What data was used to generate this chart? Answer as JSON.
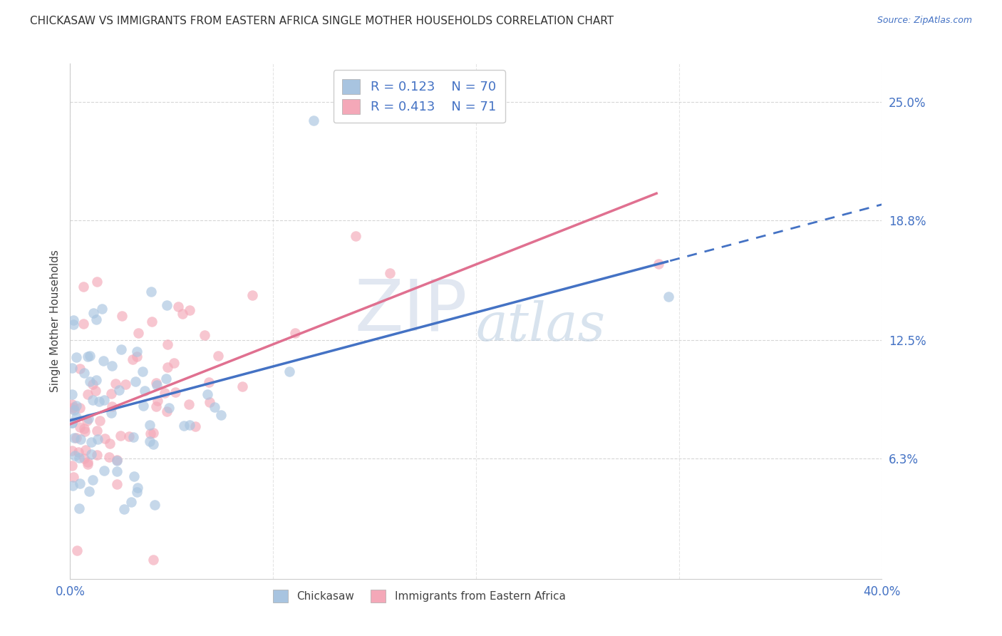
{
  "title": "CHICKASAW VS IMMIGRANTS FROM EASTERN AFRICA SINGLE MOTHER HOUSEHOLDS CORRELATION CHART",
  "source": "Source: ZipAtlas.com",
  "ylabel": "Single Mother Households",
  "ytick_labels": [
    "6.3%",
    "12.5%",
    "18.8%",
    "25.0%"
  ],
  "ytick_values": [
    0.063,
    0.125,
    0.188,
    0.25
  ],
  "xlim": [
    0.0,
    0.4
  ],
  "ylim": [
    0.0,
    0.27
  ],
  "legend_r1": "0.123",
  "legend_n1": "70",
  "legend_r2": "0.413",
  "legend_n2": "71",
  "color_blue": "#a8c4e0",
  "color_pink": "#f4a8b8",
  "color_accent": "#4472c4",
  "trendline_blue_color": "#4472c4",
  "trendline_pink_color": "#e07090",
  "background_color": "#ffffff",
  "watermark_zip": "ZIP",
  "watermark_atlas": "atlas",
  "grid_color": "#cccccc",
  "label_color": "#4472c4",
  "bottom_legend_labels": [
    "Chickasaw",
    "Immigrants from Eastern Africa"
  ]
}
